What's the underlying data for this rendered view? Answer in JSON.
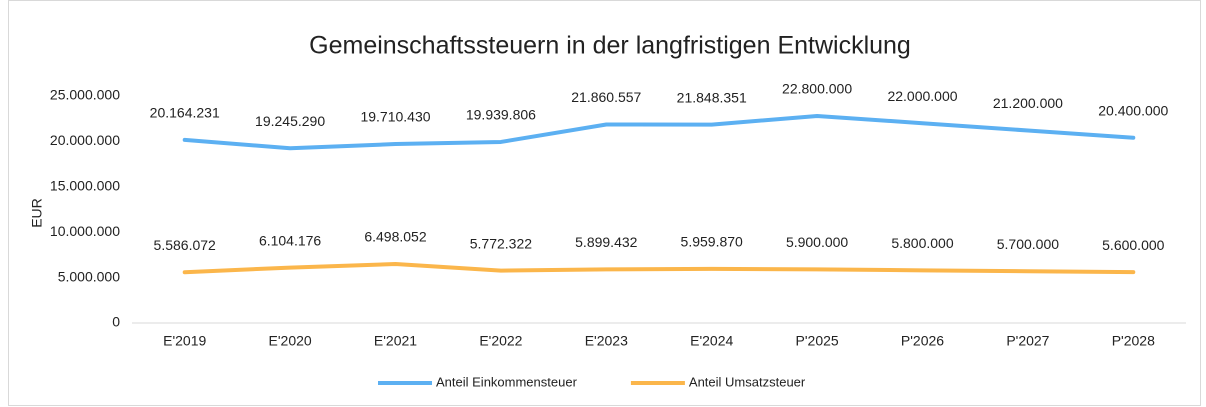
{
  "chart_data": {
    "type": "line",
    "title": "Gemeinschaftssteuern in der langfristigen Entwicklung",
    "y_label": "EUR",
    "categories": [
      "E'2019",
      "E'2020",
      "E'2021",
      "E'2022",
      "E'2023",
      "E'2024",
      "P'2025",
      "P'2026",
      "P'2027",
      "P'2028"
    ],
    "series": [
      {
        "name": "Anteil Einkommensteuer",
        "color": "#5cb0f2",
        "values": [
          20164231,
          19245290,
          19710430,
          19939806,
          21860557,
          21848351,
          22800000,
          22000000,
          21200000,
          20400000
        ],
        "value_labels": [
          "20.164.231",
          "19.245.290",
          "19.710.430",
          "19.939.806",
          "21.860.557",
          "21.848.351",
          "22.800.000",
          "22.000.000",
          "21.200.000",
          "20.400.000"
        ]
      },
      {
        "name": "Anteil Umsatzsteuer",
        "color": "#fbb64b",
        "values": [
          5586072,
          6104176,
          6498052,
          5772322,
          5899432,
          5959870,
          5900000,
          5800000,
          5700000,
          5600000
        ],
        "value_labels": [
          "5.586.072",
          "6.104.176",
          "6.498.052",
          "5.772.322",
          "5.899.432",
          "5.959.870",
          "5.900.000",
          "5.800.000",
          "5.700.000",
          "5.600.000"
        ]
      }
    ],
    "ylim": [
      0,
      25000000
    ],
    "yticks": [
      0,
      {
        "value": 5000000,
        "label": "5.000.000"
      },
      {
        "value": 10000000,
        "label": "10.000.000"
      },
      {
        "value": 15000000,
        "label": "15.000.000"
      },
      {
        "value": 20000000,
        "label": "20.000.000"
      },
      {
        "value": 25000000,
        "label": "25.000.000"
      }
    ],
    "legend": "bottom"
  }
}
